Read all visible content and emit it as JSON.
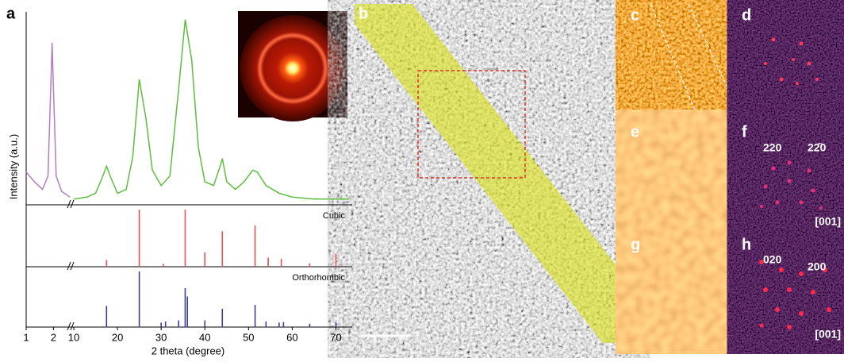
{
  "panel_labels": [
    "a",
    "b",
    "c",
    "d",
    "e",
    "f",
    "g",
    "h"
  ],
  "annotations": {
    "f": [
      "220",
      "22̄0",
      "[001]"
    ],
    "h": [
      "020",
      "200",
      "[001]"
    ]
  },
  "chart_data": {
    "type": "xrd",
    "ylabel": "Intensity (a.u.)",
    "xlabel": "2 theta (degree)",
    "xlim": [
      1,
      73
    ],
    "xbreak": [
      2.6,
      10
    ],
    "xticks": [
      1,
      2,
      10,
      20,
      30,
      40,
      50,
      60,
      70
    ],
    "ylim": [
      0,
      100
    ],
    "series": [
      {
        "color": "#b57cc4",
        "x": [
          1,
          1.3,
          1.6,
          1.8,
          1.9,
          1.95,
          2.0,
          2.1,
          2.3,
          2.5,
          2.6
        ],
        "values": [
          17,
          12,
          8,
          15,
          60,
          84,
          60,
          15,
          7,
          5,
          4
        ]
      },
      {
        "color": "#5cbf3c",
        "x": [
          10,
          13,
          15,
          16.5,
          17.5,
          18.5,
          20,
          22,
          23.5,
          25,
          26.5,
          28,
          30,
          32,
          34,
          35.5,
          37,
          38.5,
          40,
          42,
          43.5,
          44,
          45,
          47,
          49,
          51,
          52,
          54,
          57,
          60,
          65,
          70,
          73
        ],
        "values": [
          3,
          4,
          6,
          14,
          20,
          14,
          6,
          8,
          25,
          65,
          45,
          18,
          10,
          15,
          60,
          96,
          75,
          30,
          12,
          10,
          20,
          24,
          12,
          8,
          12,
          18,
          17,
          10,
          6,
          4,
          3,
          3,
          3
        ]
      }
    ],
    "reference_patterns": [
      {
        "name": "Cubic",
        "color": "#e8524f",
        "x": [
          17.5,
          25,
          30.5,
          35.5,
          40,
          44,
          51.5,
          54.5,
          57.5,
          64,
          70
        ],
        "values": [
          12,
          100,
          5,
          100,
          25,
          62,
          72,
          16,
          14,
          6,
          22
        ]
      },
      {
        "name": "Orthorhombic",
        "color": "#3c3f9a",
        "x": [
          17.5,
          25,
          30,
          31,
          34,
          35.5,
          36,
          40,
          44,
          51.5,
          54,
          57,
          58,
          64,
          70
        ],
        "values": [
          38,
          100,
          8,
          10,
          12,
          70,
          55,
          12,
          33,
          40,
          10,
          8,
          9,
          6,
          8
        ]
      }
    ]
  }
}
